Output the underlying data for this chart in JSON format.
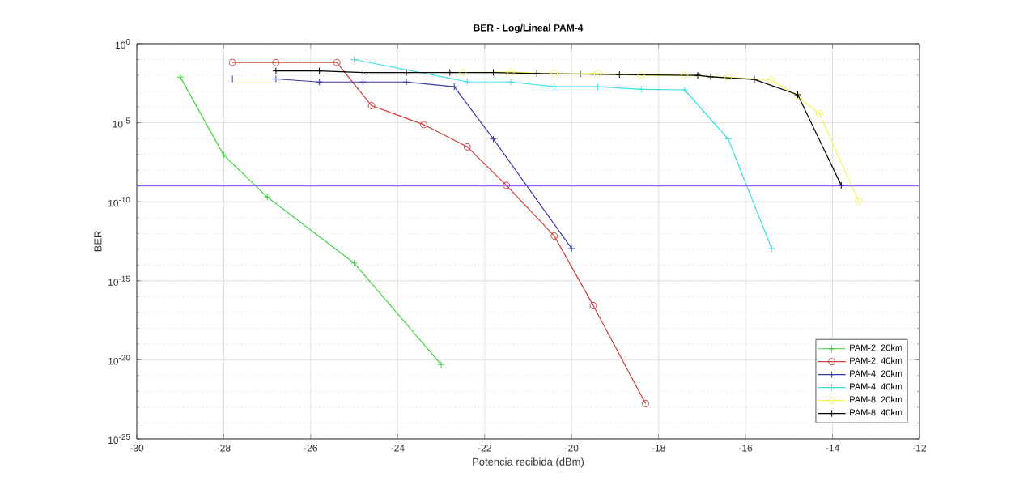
{
  "chart_data": {
    "type": "line",
    "title": "BER - Log/Lineal PAM-4",
    "xlabel": "Potencia recibida (dBm)",
    "ylabel": "BER",
    "log": "y",
    "grid": true,
    "legend": "bottom right",
    "xlim": [
      -30,
      -12
    ],
    "xticks": [
      -30,
      -28,
      -26,
      -24,
      -22,
      -20,
      -18,
      -16,
      -14,
      -12
    ],
    "ylim": [
      1e-25,
      1
    ],
    "yticks": [
      {
        "value": 1e-25,
        "label": "10$^{-25}$"
      },
      {
        "value": 1e-20,
        "label": "10$^{-20}$"
      },
      {
        "value": 1e-15,
        "label": "10$^{-15}$"
      },
      {
        "value": 1e-10,
        "label": "10$^{-10}$"
      },
      {
        "value": 1e-05,
        "label": "10$^{-5}$"
      },
      {
        "value": 1,
        "label": "10$^{0}$"
      }
    ],
    "ref_lines": [
      {
        "axis": "y",
        "value": 1e-09,
        "label": null,
        "color": "#9f5fff"
      }
    ],
    "series": [
      {
        "name": "PAM-2, 20km",
        "color": "#3ed43e",
        "marker": "cross",
        "x": [
          -29,
          -28,
          -27,
          -25,
          -23
        ],
        "values": [
          0.0078,
          8.9e-08,
          2e-10,
          1.3e-14,
          5e-21
        ]
      },
      {
        "name": "PAM-2, 40km",
        "color": "#d23c3c",
        "marker": "circle",
        "x": [
          -27.8,
          -26.8,
          -25.4,
          -24.6,
          -23.4,
          -22.4,
          -21.5,
          -20.4,
          -19.5,
          -18.3
        ],
        "values": [
          0.065,
          0.065,
          0.065,
          0.00012,
          7.6e-06,
          3e-07,
          1.1e-09,
          6.9e-13,
          2.7e-17,
          1.7e-23
        ]
      },
      {
        "name": "PAM-4, 20km",
        "color": "#3a3aa8",
        "marker": "cross",
        "x": [
          -27.8,
          -26.8,
          -25.8,
          -24.8,
          -23.8,
          -22.7,
          -21.8,
          -20
        ],
        "values": [
          0.0059,
          0.0059,
          0.0038,
          0.0038,
          0.0038,
          0.0019,
          9.3e-07,
          1.1e-13
        ]
      },
      {
        "name": "PAM-4, 40km",
        "color": "#3fe0e0",
        "marker": "cross",
        "x": [
          -25,
          -22.4,
          -21.4,
          -20.4,
          -19.4,
          -18.4,
          -17.4,
          -16.4,
          -15.4
        ],
        "values": [
          0.1,
          0.0039,
          0.0038,
          0.0019,
          0.0019,
          0.0013,
          0.0012,
          9.3e-07,
          1.1e-13
        ]
      },
      {
        "name": "PAM-8, 20km",
        "color": "#f5f55a",
        "marker": "circle",
        "x": [
          -22.5,
          -21.4,
          -20.4,
          -19.4,
          -18.4,
          -17.4,
          -16.4,
          -15.4,
          -14.8,
          -14.3,
          -13.4
        ],
        "values": [
          0.015,
          0.016,
          0.013,
          0.013,
          0.01,
          0.01,
          0.0076,
          0.005,
          0.00047,
          3.7e-05,
          1.1e-10
        ]
      },
      {
        "name": "PAM-8, 40km",
        "color": "#000000",
        "marker": "cross",
        "x": [
          -26.8,
          -25.8,
          -24.8,
          -23.8,
          -22.8,
          -21.8,
          -20.8,
          -19.8,
          -18.9,
          -17.1,
          -16.8,
          -15.8,
          -14.8,
          -13.8
        ],
        "values": [
          0.019,
          0.019,
          0.015,
          0.015,
          0.015,
          0.015,
          0.013,
          0.012,
          0.011,
          0.01,
          0.0081,
          0.0055,
          0.00059,
          1.1e-09
        ]
      }
    ]
  }
}
